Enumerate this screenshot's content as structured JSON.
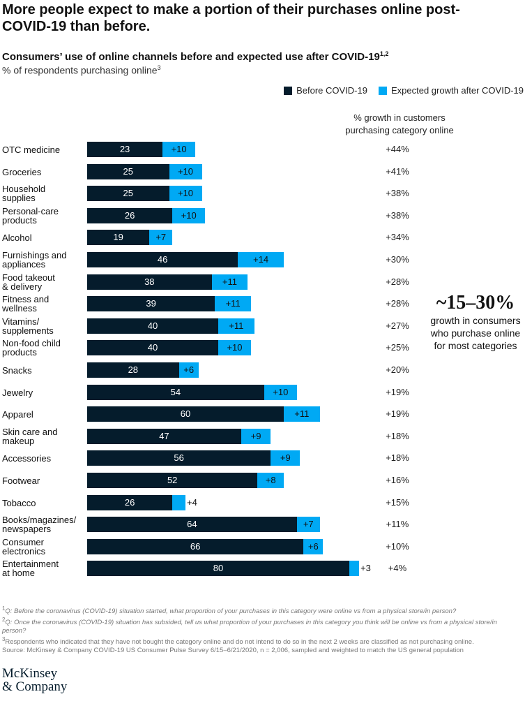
{
  "title": "More people expect to make a portion of their purchases online post-COVID-19 than before.",
  "subtitle": "Consumers’ use of online channels before and expected use after COVID-19",
  "subtitle_sup": "1,2",
  "unit": "% of respondents purchasing online",
  "unit_sup": "3",
  "growth_header": "% growth in customers purchasing category online",
  "callout": {
    "big": "~15–30%",
    "text": "growth in consumers who purchase online for most categories"
  },
  "colors": {
    "before": "#051c2c",
    "growth": "#00a9f4"
  },
  "chart_data": {
    "type": "bar",
    "orientation": "horizontal",
    "stacked": true,
    "categories": [
      "OTC medicine",
      "Groceries",
      "Household\nsupplies",
      "Personal-care\nproducts",
      "Alcohol",
      "Furnishings and\nappliances",
      "Food takeout\n& delivery",
      "Fitness and\nwellness",
      "Vitamins/\nsupplements",
      "Non-food child\nproducts",
      "Snacks",
      "Jewelry",
      "Apparel",
      "Skin care and\nmakeup",
      "Accessories",
      "Footwear",
      "Tobacco",
      "Books/magazines/\nnewspapers",
      "Consumer\nelectronics",
      "Entertainment\nat home"
    ],
    "series": [
      {
        "name": "Before COVID-19",
        "values": [
          23,
          25,
          25,
          26,
          19,
          46,
          38,
          39,
          40,
          40,
          28,
          54,
          60,
          47,
          56,
          52,
          26,
          64,
          66,
          80
        ],
        "labels": [
          "23",
          "25",
          "25",
          "26",
          "19",
          "46",
          "38",
          "39",
          "40",
          "40",
          "28",
          "54",
          "60",
          "47",
          "56",
          "52",
          "26",
          "64",
          "66",
          "80"
        ]
      },
      {
        "name": "Expected growth after COVID-19",
        "values": [
          10,
          10,
          10,
          10,
          7,
          14,
          11,
          11,
          11,
          10,
          6,
          10,
          11,
          9,
          9,
          8,
          4,
          7,
          6,
          3
        ],
        "labels": [
          "+10",
          "+10",
          "+10",
          "+10",
          "+7",
          "+14",
          "+11",
          "+11",
          "+11",
          "+10",
          "+6",
          "+10",
          "+11",
          "+9",
          "+9",
          "+8",
          "+4",
          "+7",
          "+6",
          "+3"
        ]
      }
    ],
    "growth_pct": [
      "+44%",
      "+41%",
      "+38%",
      "+38%",
      "+34%",
      "+30%",
      "+28%",
      "+28%",
      "+27%",
      "+25%",
      "+20%",
      "+19%",
      "+19%",
      "+18%",
      "+18%",
      "+16%",
      "+15%",
      "+11%",
      "+10%",
      "+4%"
    ],
    "legend_position": "top-right",
    "grid": false
  },
  "notes": {
    "n1_sup": "1",
    "n1": "Q: Before the coronavirus (COVID-19) situation started, what proportion of your purchases in this category were online vs from a physical store/in person?",
    "n2_sup": "2",
    "n2": "Q: Once the coronavirus (COVID-19) situation has subsided, tell us what proportion of your purchases in this category you think will be online vs from a physical store/in person?",
    "n3_sup": "3",
    "n3": "Respondents who indicated that they have not bought the category online and do not intend to do so in the next 2 weeks are classified as not purchasing online.",
    "source": "Source: McKinsey & Company COVID-19 US Consumer Pulse Survey 6/15–6/21/2020, n = 2,006, sampled and weighted to match the US general population"
  },
  "logo": "McKinsey & Company"
}
